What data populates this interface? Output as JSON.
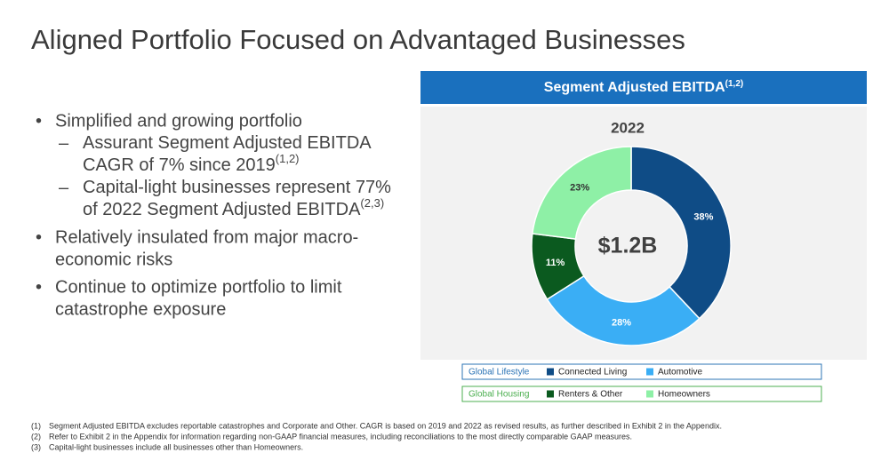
{
  "title": "Aligned Portfolio Focused on Advantaged Businesses",
  "bullets": [
    {
      "lines": [
        "Simplified and growing portfolio"
      ],
      "sub": [
        {
          "lines": [
            "Assurant Segment Adjusted EBITDA",
            "CAGR of 7% since 2019"
          ],
          "sup": "(1,2)"
        },
        {
          "lines": [
            "Capital-light businesses represent 77%",
            "of 2022 Segment Adjusted EBITDA"
          ],
          "sup": "(2,3)"
        }
      ]
    },
    {
      "lines": [
        "Relatively insulated from major macro-",
        "economic risks"
      ]
    },
    {
      "lines": [
        "Continue to optimize portfolio to limit",
        "catastrophe exposure"
      ]
    }
  ],
  "chart_data": {
    "type": "donut",
    "title": "Segment Adjusted EBITDA",
    "title_sup": "(1,2)",
    "subtitle": "2022",
    "center_label": "$1.2B",
    "categories": [
      "Connected Living",
      "Automotive",
      "Renters & Other",
      "Homeowners"
    ],
    "values": [
      38,
      28,
      11,
      23
    ],
    "value_labels": [
      "38%",
      "28%",
      "11%",
      "23%"
    ],
    "colors": [
      "#0f4c86",
      "#3aaef5",
      "#0b5a1f",
      "#8ef0a6"
    ],
    "label_colors": [
      "#ffffff",
      "#ffffff",
      "#ffffff",
      "#333333"
    ],
    "legend_groups": [
      {
        "name": "Global Lifestyle",
        "color": "#2e75b6",
        "members": [
          0,
          1
        ]
      },
      {
        "name": "Global Housing",
        "color": "#4caf50",
        "members": [
          2,
          3
        ]
      }
    ]
  },
  "footnotes": [
    {
      "marker": "(1)",
      "text": "Segment Adjusted EBITDA excludes reportable catastrophes and Corporate and Other.  CAGR is based on 2019 and 2022 as revised results, as further described in Exhibit 2 in the Appendix."
    },
    {
      "marker": "(2)",
      "text": "Refer to Exhibit 2 in the Appendix for information regarding non-GAAP financial measures, including reconciliations to the most directly comparable GAAP measures."
    },
    {
      "marker": "(3)",
      "text": "Capital-light businesses include all businesses other than Homeowners."
    }
  ]
}
